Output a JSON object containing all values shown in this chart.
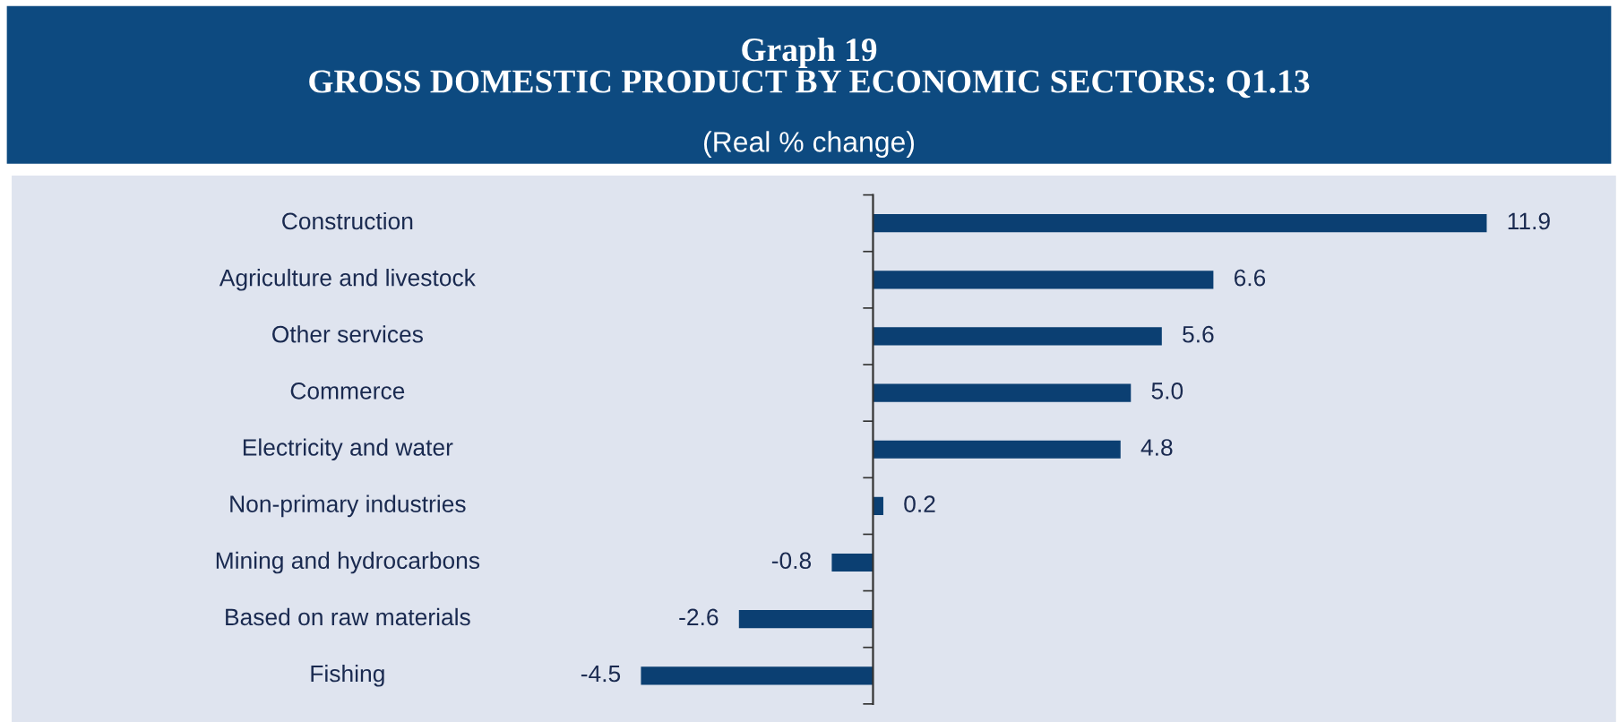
{
  "chart_data": {
    "type": "bar",
    "orientation": "horizontal",
    "title": "Graph 19\nGROSS DOMESTIC PRODUCT BY ECONOMIC SECTORS: Q1.13",
    "subtitle": "(Real % change)",
    "categories": [
      "Construction",
      "Agriculture and livestock",
      "Other services",
      "Commerce",
      "Electricity and water",
      "Non-primary industries",
      "Mining and hydrocarbons",
      "Based on raw materials",
      "Fishing"
    ],
    "values": [
      11.9,
      6.6,
      5.6,
      5.0,
      4.8,
      0.2,
      -0.8,
      -2.6,
      -4.5
    ],
    "value_labels": [
      "11.9",
      "6.6",
      "5.6",
      "5.0",
      "4.8",
      "0.2",
      "-0.8",
      "-2.6",
      "-4.5"
    ],
    "color": "#0b3f72",
    "tick_labels": "y"
  }
}
